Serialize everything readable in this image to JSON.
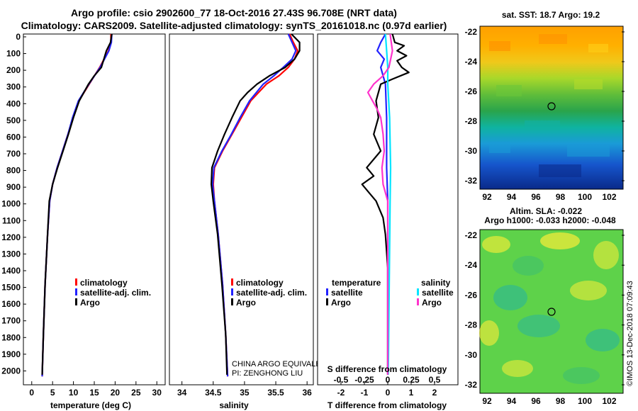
{
  "header": {
    "line1": "Argo profile: csio 2902600_77 18-Oct-2016 27.43S 96.708E (NRT data)",
    "line2": "Climatology: CARS2009. Satellite-adjusted climatology: synTS_20161018.nc (0.97d earlier)"
  },
  "colors": {
    "climatology": "#ff0000",
    "satellite": "#2222ff",
    "argo": "#000000",
    "t_sat": "#2222ff",
    "t_argo": "#000000",
    "s_sat": "#00e5ff",
    "s_argo": "#ff33cc"
  },
  "chart_data": [
    {
      "type": "line",
      "id": "temperature",
      "xlabel": "temperature (deg C)",
      "ylabel": "",
      "xlim": [
        -2,
        32
      ],
      "ylim": [
        2100,
        0
      ],
      "xticks": [
        0,
        5,
        10,
        15,
        20,
        25,
        30
      ],
      "yticks": [
        0,
        100,
        200,
        300,
        400,
        500,
        600,
        700,
        800,
        900,
        1000,
        1100,
        1200,
        1300,
        1400,
        1500,
        1600,
        1700,
        1800,
        1900,
        2000
      ],
      "legend": [
        "climatology",
        "satellite-adj. clim.",
        "Argo"
      ],
      "series": [
        {
          "name": "climatology",
          "y": [
            0,
            50,
            100,
            200,
            300,
            400,
            500,
            600,
            700,
            800,
            900,
            1000,
            1200,
            1500,
            1800,
            2050
          ],
          "x": [
            19.0,
            19.0,
            18.4,
            16.3,
            13.8,
            11.3,
            9.9,
            8.7,
            7.4,
            6.1,
            5.0,
            4.3,
            3.8,
            3.2,
            2.8,
            2.5
          ]
        },
        {
          "name": "satellite-adj. clim.",
          "y": [
            0,
            50,
            100,
            200,
            300,
            400,
            500,
            600,
            700,
            800,
            900,
            1000,
            1200,
            1500,
            1800,
            2050
          ],
          "x": [
            19.2,
            19.1,
            18.5,
            16.4,
            13.7,
            11.2,
            9.8,
            8.7,
            7.4,
            6.1,
            5.0,
            4.3,
            3.8,
            3.2,
            2.8,
            2.5
          ]
        },
        {
          "name": "Argo",
          "y": [
            0,
            50,
            100,
            200,
            250,
            300,
            400,
            500,
            600,
            700,
            800,
            900,
            1000,
            1200,
            1500,
            1800,
            2040
          ],
          "x": [
            19.2,
            18.9,
            17.9,
            16.7,
            15.0,
            13.6,
            11.4,
            10.0,
            8.8,
            7.5,
            6.2,
            5.0,
            4.2,
            3.8,
            3.2,
            2.8,
            2.5
          ]
        }
      ]
    },
    {
      "type": "line",
      "id": "salinity",
      "xlabel": "salinity",
      "ylabel": "",
      "xlim": [
        33.8,
        36.1
      ],
      "ylim": [
        2100,
        0
      ],
      "xticks": [
        34,
        34.5,
        35,
        35.5,
        36
      ],
      "tick_labels": [
        "34",
        "34.5",
        "35",
        "35.5",
        "36"
      ],
      "legend": [
        "climatology",
        "satellite-adj. clim.",
        "Argo"
      ],
      "annotation_lines": [
        "CHINA ARGO EQUIVALENT",
        "PI: ZENGHONG LIU"
      ],
      "series": [
        {
          "name": "climatology",
          "y": [
            0,
            50,
            100,
            150,
            200,
            250,
            300,
            400,
            500,
            600,
            700,
            800,
            900,
            1000,
            1200,
            1500,
            1800,
            2050
          ],
          "x": [
            35.72,
            35.78,
            35.85,
            35.8,
            35.7,
            35.55,
            35.35,
            35.1,
            34.95,
            34.8,
            34.65,
            34.52,
            34.5,
            34.52,
            34.58,
            34.65,
            34.7,
            34.73
          ]
        },
        {
          "name": "satellite-adj. clim.",
          "y": [
            0,
            50,
            100,
            150,
            200,
            250,
            300,
            400,
            500,
            600,
            700,
            800,
            900,
            1000,
            1200,
            1500,
            1800,
            2050
          ],
          "x": [
            35.7,
            35.76,
            35.82,
            35.76,
            35.62,
            35.47,
            35.3,
            35.08,
            34.93,
            34.79,
            34.64,
            34.51,
            34.49,
            34.52,
            34.58,
            34.65,
            34.7,
            34.73
          ]
        },
        {
          "name": "Argo",
          "y": [
            0,
            50,
            100,
            150,
            200,
            250,
            300,
            350,
            400,
            500,
            600,
            700,
            800,
            900,
            1000,
            1200,
            1500,
            1800,
            2040
          ],
          "x": [
            35.75,
            35.88,
            35.88,
            35.8,
            35.65,
            35.4,
            35.2,
            35.05,
            34.93,
            34.8,
            34.68,
            34.57,
            34.48,
            34.47,
            34.5,
            34.57,
            34.64,
            34.7,
            34.72
          ]
        }
      ]
    },
    {
      "type": "line",
      "id": "difference",
      "xlabel": "T difference from climatology",
      "xlabel_top": "S difference from climatology",
      "xlim": [
        -3,
        3
      ],
      "ylim": [
        2100,
        0
      ],
      "xticks_T": [
        -2,
        -1,
        0,
        1,
        2
      ],
      "xticks_S": [
        "-0.5",
        "-0.25",
        "0",
        "0.25",
        "0.5"
      ],
      "legend": {
        "temperature": [
          "satellite",
          "Argo"
        ],
        "salinity": [
          "satellite",
          "Argo"
        ]
      },
      "legend_titles": {
        "temperature": "temperature",
        "salinity": "salinity"
      },
      "series": [
        {
          "name": "T satellite",
          "y": [
            0,
            50,
            100,
            150,
            200,
            300,
            500,
            800,
            1000,
            2040
          ],
          "x": [
            -0.1,
            -0.3,
            -0.45,
            -0.15,
            -0.3,
            -0.1,
            -0.05,
            -0.05,
            0.0,
            0.0
          ]
        },
        {
          "name": "T Argo",
          "y": [
            0,
            50,
            70,
            100,
            130,
            160,
            200,
            230,
            270,
            300,
            400,
            500,
            600,
            700,
            800,
            850,
            900,
            950,
            1000,
            1100,
            1200,
            1400,
            1700,
            2040
          ],
          "x": [
            0.2,
            0.3,
            0.7,
            0.4,
            0.8,
            0.4,
            0.6,
            0.9,
            0.2,
            -0.3,
            -0.5,
            -0.4,
            -0.6,
            -0.3,
            -0.9,
            -0.6,
            -1.1,
            -0.8,
            -0.5,
            -0.2,
            -0.1,
            0.0,
            0.0,
            0.0
          ]
        },
        {
          "name": "S satellite",
          "y": [
            0,
            100,
            200,
            300,
            500,
            800,
            1000,
            2040
          ],
          "x": [
            -0.1,
            -0.05,
            0.0,
            0.0,
            0.08,
            0.12,
            0.1,
            0.02
          ]
        },
        {
          "name": "S Argo",
          "y": [
            0,
            100,
            200,
            250,
            300,
            350,
            400,
            450,
            500,
            600,
            700,
            800,
            900,
            950,
            1000,
            1200,
            1500,
            2040
          ],
          "x": [
            0.1,
            0.2,
            0.05,
            -0.2,
            -0.6,
            -0.85,
            -0.65,
            -0.45,
            -0.3,
            -0.2,
            -0.15,
            -0.25,
            -0.2,
            -0.1,
            0.0,
            0.0,
            0.0,
            0.0
          ]
        }
      ]
    }
  ],
  "map_sst": {
    "title": "sat. SST: 18.7 Argo: 19.2",
    "lat_ticks": [
      "-22",
      "-24",
      "-26",
      "-28",
      "-30",
      "-32"
    ],
    "lon_ticks": [
      "92",
      "94",
      "96",
      "98",
      "100",
      "102"
    ],
    "colors": [
      "#ffa000",
      "#f5c21a",
      "#c8e01e",
      "#7cc73a",
      "#2aa44b",
      "#0fb3a0",
      "#1a9bd7",
      "#1655cc",
      "#0a2a8a"
    ]
  },
  "map_sla": {
    "title1": "Altim. SLA: -0.022",
    "title2": "Argo h1000: -0.033 h2000: -0.048",
    "lat_ticks": [
      "-22",
      "-24",
      "-26",
      "-28",
      "-30",
      "-32"
    ],
    "lon_ticks": [
      "92",
      "94",
      "96",
      "98",
      "100",
      "102"
    ]
  },
  "credit": "©IMOS 13-Dec-2018 07:09:43"
}
